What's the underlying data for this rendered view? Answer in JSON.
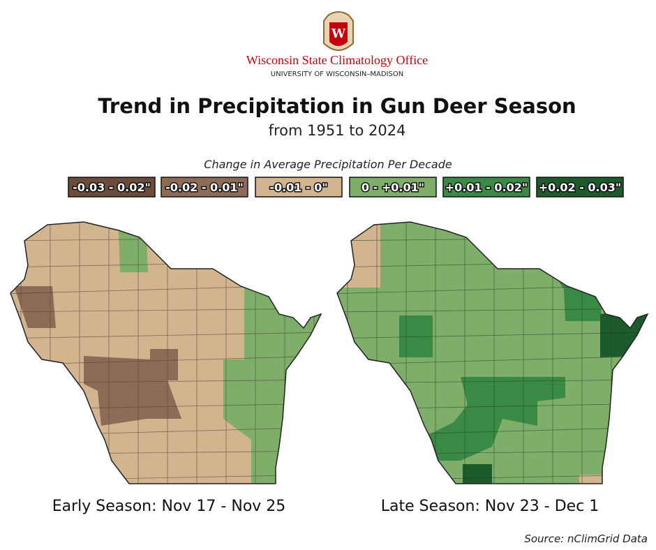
{
  "header": {
    "logo_letter": "W",
    "org": "Wisconsin State Climatology Office",
    "university": "UNIVERSITY OF WISCONSIN–MADISON"
  },
  "title": "Trend in Precipitation in Gun Deer Season",
  "subtitle": "from 1951 to 2024",
  "legend": {
    "title": "Change in Average Precipitation Per Decade",
    "items": [
      {
        "label": "-0.03 - 0.02\"",
        "color": "#6b4c3a"
      },
      {
        "label": "-0.02 - 0.01\"",
        "color": "#8d6b57"
      },
      {
        "label": "-0.01 - 0\"",
        "color": "#d2b48f"
      },
      {
        "label": "0 - +0.01\"",
        "color": "#7fae6b"
      },
      {
        "label": "+0.01 - 0.02\"",
        "color": "#3a8a46"
      },
      {
        "label": "+0.02 - 0.03\"",
        "color": "#1d5a2c"
      }
    ]
  },
  "maps": [
    {
      "caption": "Early Season: Nov 17 - Nov 25"
    },
    {
      "caption": "Late Season: Nov 23 - Dec 1"
    }
  ],
  "source": "Source: nClimGrid Data"
}
